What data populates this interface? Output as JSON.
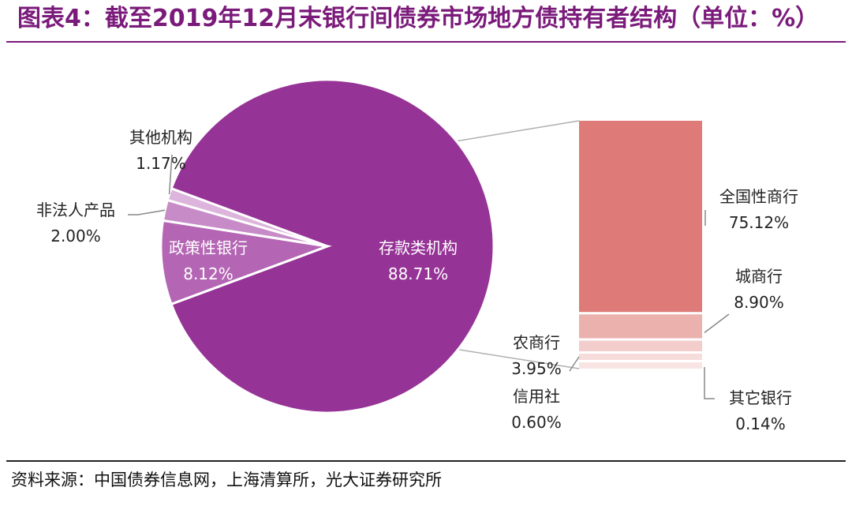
{
  "title": "图表4：截至2019年12月末银行间债券市场地方债持有者结构（单位：%）",
  "source": "资料来源：中国债券信息网，上海清算所，光大证券研究所",
  "chart_data": {
    "type": "pie",
    "pie": {
      "slices": [
        {
          "label": "存款类机构",
          "value": 88.71,
          "value_text": "88.71%",
          "color": "#963396"
        },
        {
          "label": "政策性银行",
          "value": 8.12,
          "value_text": "8.12%",
          "color": "#b466b4"
        },
        {
          "label": "非法人产品",
          "value": 2.0,
          "value_text": "2.00%",
          "color": "#c78cc7"
        },
        {
          "label": "其他机构",
          "value": 1.17,
          "value_text": "1.17%",
          "color": "#dcb4dc"
        }
      ]
    },
    "breakdown_of": "存款类机构",
    "bar": {
      "segments": [
        {
          "label": "全国性商行",
          "value": 75.12,
          "value_text": "75.12%",
          "color": "#de7b78"
        },
        {
          "label": "城商行",
          "value": 8.9,
          "value_text": "8.90%",
          "color": "#ebb1ad"
        },
        {
          "label": "农商行",
          "value": 3.95,
          "value_text": "3.95%",
          "color": "#f2cdcb"
        },
        {
          "label": "信用社",
          "value": 0.6,
          "value_text": "0.60%",
          "color": "#f6dcda"
        },
        {
          "label": "其它银行",
          "value": 0.14,
          "value_text": "0.14%",
          "color": "#f8e4e2"
        }
      ]
    }
  }
}
